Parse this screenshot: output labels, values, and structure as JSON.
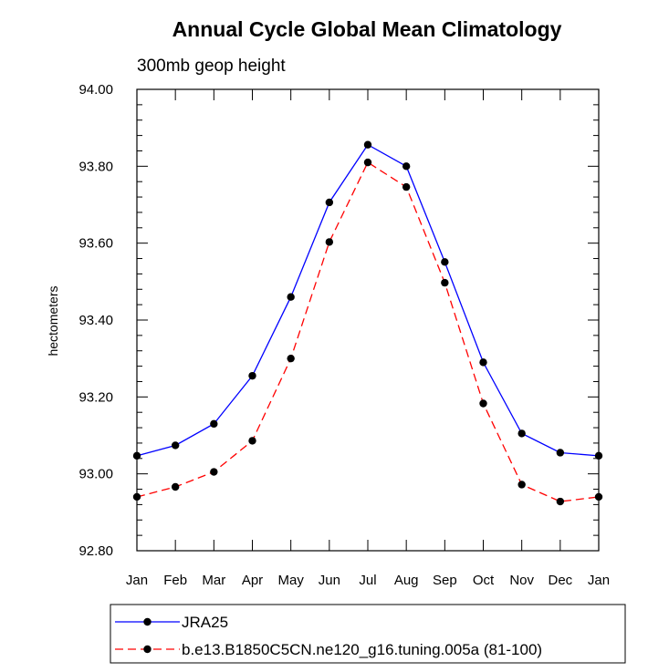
{
  "chart_data": {
    "type": "line",
    "title": "Annual Cycle Global Mean Climatology",
    "subtitle": "300mb geop height",
    "xlabel": "",
    "ylabel": "hectometers",
    "categories": [
      "Jan",
      "Feb",
      "Mar",
      "Apr",
      "May",
      "Jun",
      "Jul",
      "Aug",
      "Sep",
      "Oct",
      "Nov",
      "Dec",
      "Jan"
    ],
    "ylim": [
      92.8,
      94.0
    ],
    "yticks": [
      92.8,
      93.0,
      93.2,
      93.4,
      93.6,
      93.8,
      94.0
    ],
    "ytick_labels": [
      "92.80",
      "93.00",
      "93.20",
      "93.40",
      "93.60",
      "93.80",
      "94.00"
    ],
    "grid": false,
    "legend_position": "bottom",
    "series": [
      {
        "name": "JRA25",
        "color": "#0000ff",
        "line_style": "solid",
        "marker": "circle",
        "values": [
          93.047,
          93.074,
          93.13,
          93.255,
          93.46,
          93.706,
          93.856,
          93.8,
          93.551,
          93.29,
          93.105,
          93.055,
          93.047
        ]
      },
      {
        "name": "b.e13.B1850C5CN.ne120_g16.tuning.005a (81-100)",
        "color": "#ff0000",
        "line_style": "dashed",
        "marker": "circle",
        "values": [
          92.94,
          92.966,
          93.005,
          93.086,
          93.3,
          93.603,
          93.81,
          93.746,
          93.497,
          93.183,
          92.972,
          92.928,
          92.94
        ]
      }
    ]
  }
}
